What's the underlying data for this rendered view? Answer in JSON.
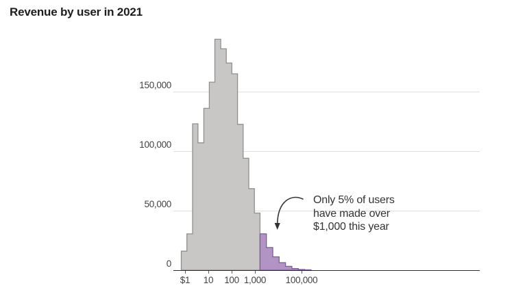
{
  "title": "Revenue by user in 2021",
  "chart_data": {
    "type": "histogram",
    "title": "Revenue by user in 2021",
    "x_axis": {
      "scale": "log10",
      "ticks": [
        {
          "label": "$1",
          "value": 1
        },
        {
          "label": "10",
          "value": 10
        },
        {
          "label": "100",
          "value": 100
        },
        {
          "label": "1,000",
          "value": 1000
        },
        {
          "label": "100,000",
          "value": 100000
        }
      ]
    },
    "y_axis": {
      "ticks": [
        {
          "label": "0",
          "value": 0
        },
        {
          "label": "50,000",
          "value": 50000
        },
        {
          "label": "100,000",
          "value": 100000
        },
        {
          "label": "150,000",
          "value": 150000
        }
      ],
      "ylim": [
        0,
        200000
      ],
      "grid": "on"
    },
    "series": [
      {
        "name": "users-under-1000-dollars",
        "fill": "#c8c7c5",
        "stroke": "#8f8f8d",
        "bin_edges_dollars": [
          0.69,
          1.2,
          2.1,
          3.6,
          6.4,
          11,
          19,
          34,
          59,
          102,
          179,
          311,
          543,
          946,
          1650
        ],
        "counts": [
          16000,
          30500,
          123000,
          107000,
          136000,
          158000,
          194000,
          186000,
          174000,
          165000,
          122500,
          94000,
          68500,
          48000
        ]
      },
      {
        "name": "users-over-1000-dollars",
        "fill": "#b194c3",
        "stroke": "#7a5c98",
        "bin_edges_dollars": [
          1650,
          3100,
          5800,
          10900,
          20500,
          38600,
          72500,
          136000,
          256000
        ],
        "counts": [
          30500,
          19000,
          11200,
          6300,
          3200,
          1400,
          600,
          300
        ]
      }
    ],
    "annotation": {
      "lines": [
        "Only 5% of users",
        "have made over",
        "$1,000 this year"
      ]
    }
  }
}
